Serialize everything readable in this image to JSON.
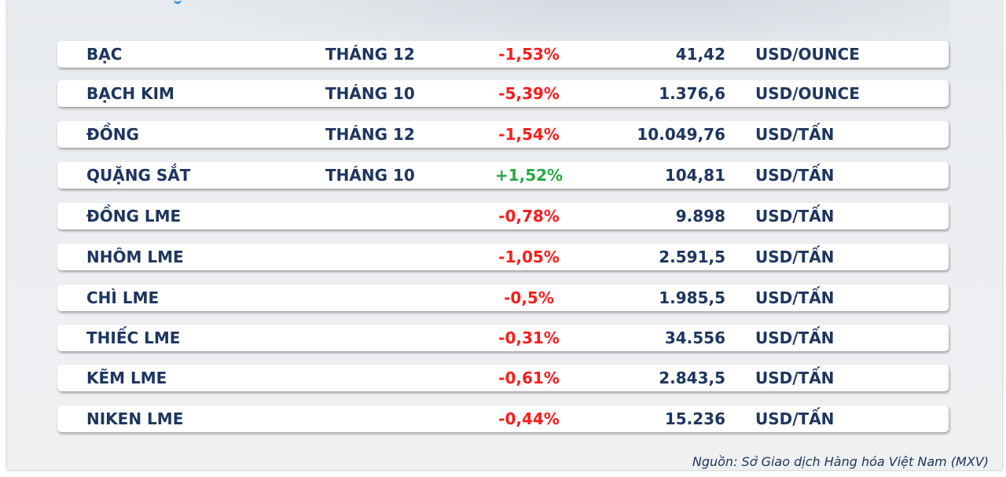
{
  "table": {
    "rows": [
      {
        "name": "BẠC",
        "month": "THÁNG 12",
        "change": "-1,53%",
        "direction": "down",
        "price": "41,42",
        "unit": "USD/OUNCE"
      },
      {
        "name": "BẠCH KIM",
        "month": "THÁNG 10",
        "change": "-5,39%",
        "direction": "down",
        "price": "1.376,6",
        "unit": "USD/OUNCE"
      },
      {
        "name": "ĐỒNG",
        "month": "THÁNG 12",
        "change": "-1,54%",
        "direction": "down",
        "price": "10.049,76",
        "unit": "USD/TẤN"
      },
      {
        "name": "QUẶNG SẮT",
        "month": "THÁNG 10",
        "change": "+1,52%",
        "direction": "up",
        "price": "104,81",
        "unit": "USD/TẤN"
      },
      {
        "name": "ĐỒNG LME",
        "month": "",
        "change": "-0,78%",
        "direction": "down",
        "price": "9.898",
        "unit": "USD/TẤN"
      },
      {
        "name": "NHÔM LME",
        "month": "",
        "change": "-1,05%",
        "direction": "down",
        "price": "2.591,5",
        "unit": "USD/TẤN"
      },
      {
        "name": "CHÌ LME",
        "month": "",
        "change": "-0,5%",
        "direction": "down",
        "price": "1.985,5",
        "unit": "USD/TẤN"
      },
      {
        "name": "THIẾC LME",
        "month": "",
        "change": "-0,31%",
        "direction": "down",
        "price": "34.556",
        "unit": "USD/TẤN"
      },
      {
        "name": "KẼM LME",
        "month": "",
        "change": "-0,61%",
        "direction": "down",
        "price": "2.843,5",
        "unit": "USD/TẤN"
      },
      {
        "name": "NIKEN LME",
        "month": "",
        "change": "-0,44%",
        "direction": "down",
        "price": "15.236",
        "unit": "USD/TẤN"
      }
    ]
  },
  "colors": {
    "text": "#1d3660",
    "negative": "#ff1a1a",
    "positive": "#27a844",
    "accent_line": "#f2c24d"
  },
  "footer": {
    "source": "Nguồn: Sở Giao dịch Hàng hóa Việt Nam (MXV)"
  }
}
